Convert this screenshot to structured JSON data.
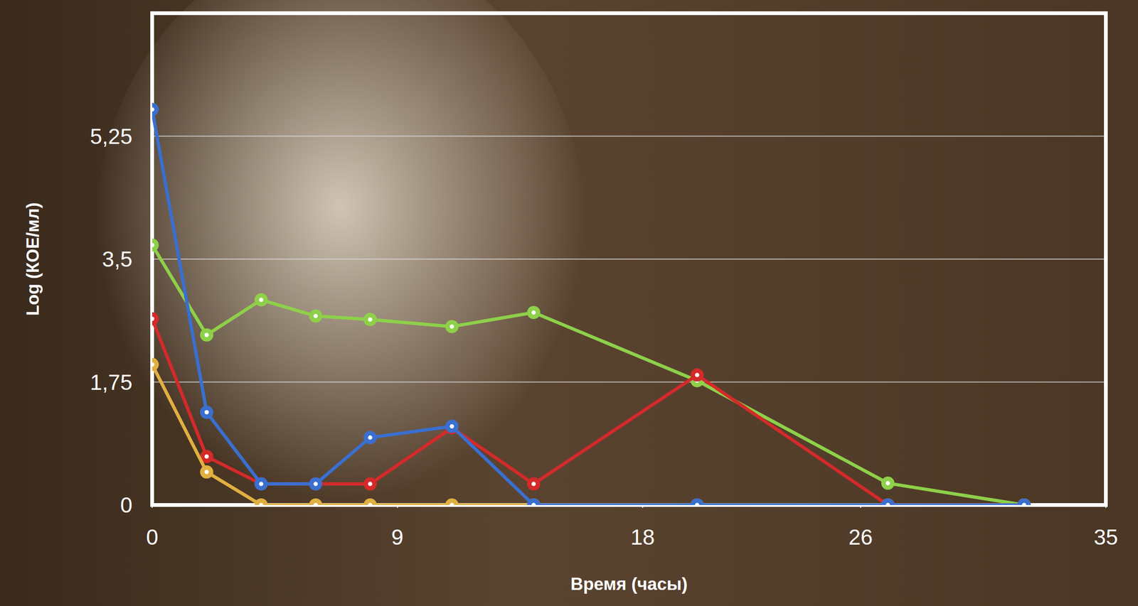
{
  "chart_data": {
    "type": "line",
    "x_label": "Время (часы)",
    "y_label": "Log (КОЕ/мл)",
    "x": [
      0,
      2,
      4,
      6,
      8,
      11,
      14,
      20,
      27,
      32
    ],
    "xlim": [
      0,
      35
    ],
    "xticks": [
      0,
      9,
      18,
      26,
      35
    ],
    "ylim": [
      0,
      7
    ],
    "yticks": [
      0,
      {
        "value": 1.75,
        "label": "1,75"
      },
      {
        "value": 3.5,
        "label": "3,5"
      },
      {
        "value": 5.25,
        "label": "5,25"
      }
    ],
    "grid": true,
    "marker": "circle",
    "series": [
      {
        "color": "#8ed04a",
        "values": [
          3.7,
          2.42,
          2.92,
          2.69,
          2.64,
          2.54,
          2.74,
          1.77,
          0.31,
          0
        ]
      },
      {
        "color": "#d42a2a",
        "values": [
          2.65,
          0.69,
          0.3,
          0.3,
          0.3,
          1.1,
          0.3,
          1.85,
          0,
          0
        ]
      },
      {
        "color": "#e0b040",
        "values": [
          2.0,
          0.47,
          0,
          0,
          0,
          0,
          0,
          0,
          0,
          0
        ]
      },
      {
        "color": "#3a6fd0",
        "values": [
          5.63,
          1.32,
          0.3,
          0.3,
          0.96,
          1.12,
          0,
          0,
          0,
          0
        ]
      }
    ]
  }
}
